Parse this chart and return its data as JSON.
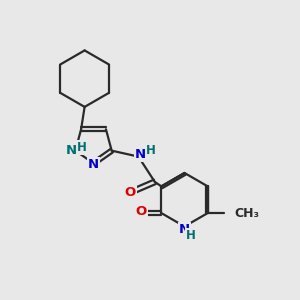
{
  "bg_color": "#e8e8e8",
  "bond_color": "#2a2a2a",
  "bond_width": 1.6,
  "N_color": "#0000cc",
  "NH_color": "#007070",
  "O_color": "#dd0000",
  "C_color": "#2a2a2a",
  "font_size": 9.5,
  "fig_size": [
    3.0,
    3.0
  ],
  "dpi": 100,
  "xlim": [
    0,
    10
  ],
  "ylim": [
    0,
    10
  ]
}
